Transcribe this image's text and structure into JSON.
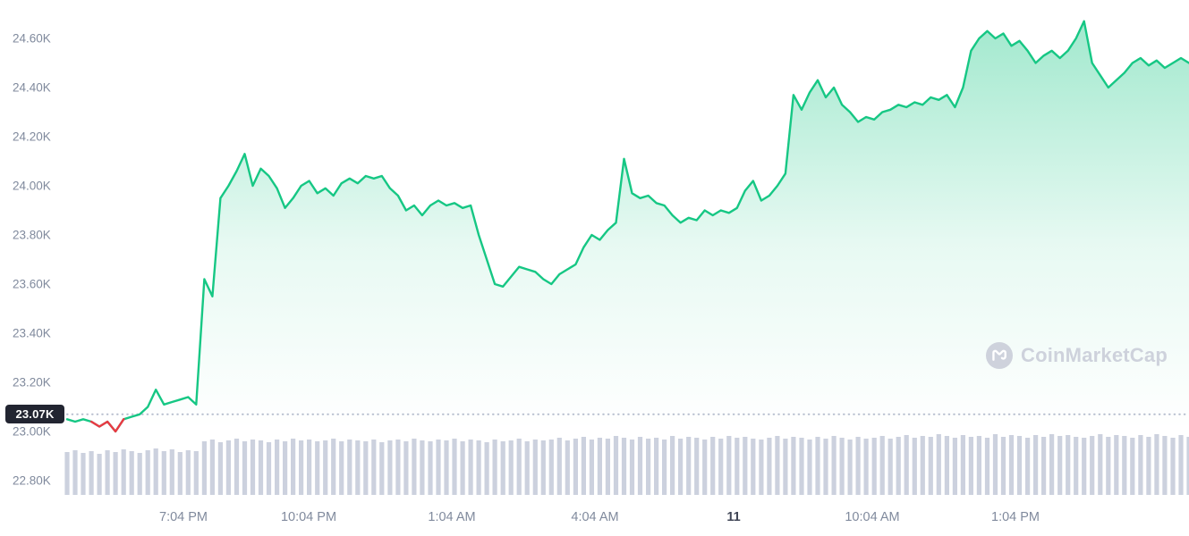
{
  "watermark": {
    "text": "CoinMarketCap"
  },
  "colors": {
    "up": "#16c784",
    "down": "#ea3943",
    "area_top": "rgba(22,199,132,0.40)",
    "area_mid": "rgba(22,199,132,0.10)",
    "area_bottom": "rgba(22,199,132,0)",
    "axis_label": "#808a9d",
    "date_label": "#404656",
    "badge_bg": "#222531",
    "badge_text": "#ffffff",
    "volume": "#ccd1de",
    "dotted_line": "#b7bece",
    "watermark": "#ced2dc"
  },
  "chart_data": {
    "type": "line",
    "title": "",
    "xlabel": "",
    "ylabel": "",
    "legend": [],
    "grid": false,
    "ylim": [
      22.7,
      24.78
    ],
    "y_axis": {
      "ticks": [
        {
          "label": "24.60K",
          "value": 24.6
        },
        {
          "label": "24.40K",
          "value": 24.4
        },
        {
          "label": "24.20K",
          "value": 24.2
        },
        {
          "label": "24.00K",
          "value": 24.0
        },
        {
          "label": "23.80K",
          "value": 23.8
        },
        {
          "label": "23.60K",
          "value": 23.6
        },
        {
          "label": "23.40K",
          "value": 23.4
        },
        {
          "label": "23.20K",
          "value": 23.2
        },
        {
          "label": "23.00K",
          "value": 23.0
        },
        {
          "label": "22.80K",
          "value": 22.8
        }
      ]
    },
    "x_axis": {
      "ticks": [
        {
          "label": "7:04 PM",
          "x": 205,
          "bold": false
        },
        {
          "label": "10:04 PM",
          "x": 345,
          "bold": false
        },
        {
          "label": "1:04 AM",
          "x": 505,
          "bold": false
        },
        {
          "label": "4:04 AM",
          "x": 665,
          "bold": false
        },
        {
          "label": "11",
          "x": 820,
          "bold": true
        },
        {
          "label": "10:04 AM",
          "x": 975,
          "bold": false
        },
        {
          "label": "1:04 PM",
          "x": 1135,
          "bold": false
        }
      ]
    },
    "reference": {
      "label": "23.07K",
      "value": 23.07
    },
    "red_segment": [
      3,
      7
    ],
    "prices": [
      23.05,
      23.04,
      23.05,
      23.04,
      23.02,
      23.04,
      23.0,
      23.05,
      23.06,
      23.07,
      23.1,
      23.17,
      23.11,
      23.12,
      23.13,
      23.14,
      23.11,
      23.62,
      23.55,
      23.95,
      24.0,
      24.06,
      24.13,
      24.0,
      24.07,
      24.04,
      23.99,
      23.91,
      23.95,
      24.0,
      24.02,
      23.97,
      23.99,
      23.96,
      24.01,
      24.03,
      24.01,
      24.04,
      24.03,
      24.04,
      23.99,
      23.96,
      23.9,
      23.92,
      23.88,
      23.92,
      23.94,
      23.92,
      23.93,
      23.91,
      23.92,
      23.8,
      23.7,
      23.6,
      23.59,
      23.63,
      23.67,
      23.66,
      23.65,
      23.62,
      23.6,
      23.64,
      23.66,
      23.68,
      23.75,
      23.8,
      23.78,
      23.82,
      23.85,
      24.11,
      23.97,
      23.95,
      23.96,
      23.93,
      23.92,
      23.88,
      23.85,
      23.87,
      23.86,
      23.9,
      23.88,
      23.9,
      23.89,
      23.91,
      23.98,
      24.02,
      23.94,
      23.96,
      24.0,
      24.05,
      24.37,
      24.31,
      24.38,
      24.43,
      24.36,
      24.4,
      24.33,
      24.3,
      24.26,
      24.28,
      24.27,
      24.3,
      24.31,
      24.33,
      24.32,
      24.34,
      24.33,
      24.36,
      24.35,
      24.37,
      24.32,
      24.4,
      24.55,
      24.6,
      24.63,
      24.6,
      24.62,
      24.57,
      24.59,
      24.55,
      24.5,
      24.53,
      24.55,
      24.52,
      24.55,
      24.6,
      24.67,
      24.5,
      24.45,
      24.4,
      24.43,
      24.46,
      24.5,
      24.52,
      24.49,
      24.51,
      24.48,
      24.5,
      24.52,
      24.5
    ],
    "volumes": [
      48,
      50,
      47,
      49,
      46,
      50,
      48,
      51,
      49,
      47,
      50,
      52,
      49,
      51,
      48,
      50,
      49,
      60,
      62,
      59,
      61,
      63,
      60,
      62,
      61,
      59,
      62,
      60,
      63,
      61,
      62,
      60,
      61,
      63,
      60,
      62,
      61,
      60,
      62,
      59,
      61,
      62,
      60,
      63,
      61,
      60,
      62,
      61,
      63,
      60,
      62,
      61,
      59,
      62,
      60,
      61,
      63,
      60,
      62,
      61,
      62,
      64,
      61,
      63,
      65,
      62,
      64,
      63,
      66,
      64,
      62,
      65,
      63,
      64,
      62,
      66,
      63,
      65,
      64,
      62,
      65,
      63,
      66,
      64,
      65,
      63,
      62,
      64,
      66,
      63,
      65,
      64,
      62,
      65,
      63,
      66,
      64,
      62,
      65,
      63,
      64,
      66,
      63,
      65,
      67,
      64,
      66,
      65,
      68,
      66,
      64,
      67,
      65,
      66,
      64,
      68,
      65,
      67,
      66,
      64,
      67,
      65,
      68,
      66,
      67,
      65,
      64,
      66,
      68,
      65,
      67,
      66,
      64,
      67,
      65,
      68,
      66,
      64,
      67,
      65
    ]
  }
}
